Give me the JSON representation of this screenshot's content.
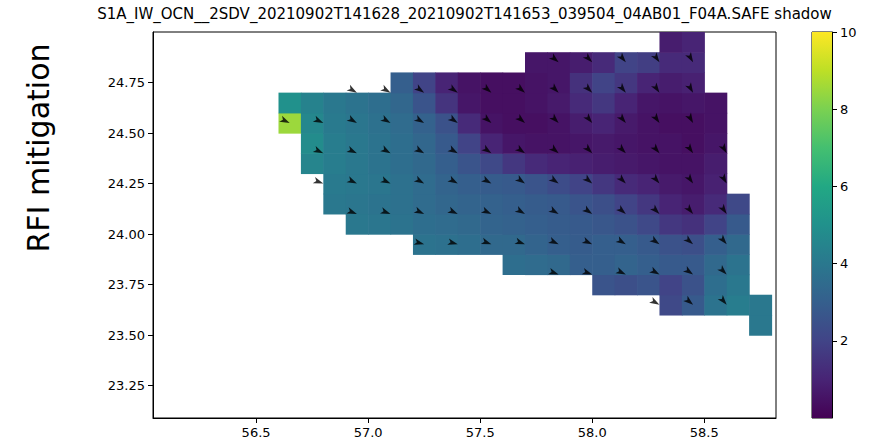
{
  "chart_data": {
    "type": "heatmap",
    "title": "S1A_IW_OCN__2SDV_20210902T141628_20210902T141653_039504_04AB01_F04A.SAFE shadow",
    "panel_label": "RFI mitigation",
    "grid": false,
    "color": "viridis",
    "xlim": [
      56.04,
      58.82
    ],
    "xticks": [
      56.5,
      {
        "value": 57,
        "label": "57.0"
      },
      57.5,
      {
        "value": 58,
        "label": "58.0"
      },
      58.5
    ],
    "ylim": [
      23.09,
      25.0
    ],
    "yticks": [
      23.25,
      {
        "value": 23.5,
        "label": "23.50"
      },
      23.75,
      {
        "value": 24,
        "label": "24.00"
      },
      24.25,
      {
        "value": 24.5,
        "label": "24.50"
      },
      24.75
    ],
    "colorbar": {
      "range": [
        0,
        10
      ],
      "ticks": [
        2,
        4,
        6,
        8,
        10
      ]
    },
    "cells": {
      "x": [
        56.65,
        56.75,
        56.85,
        56.95,
        57.05,
        57.15,
        57.25,
        57.35,
        57.45,
        57.55,
        57.65,
        57.75,
        57.85,
        57.95,
        58.05,
        58.15,
        58.25,
        58.35,
        58.45,
        58.55,
        58.65,
        58.75
      ],
      "y": [
        23.55,
        23.65,
        23.75,
        23.85,
        23.95,
        24.05,
        24.15,
        24.25,
        24.35,
        24.45,
        24.55,
        24.65,
        24.75,
        24.85,
        24.95
      ],
      "values": [
        [
          null,
          null,
          null,
          null,
          null,
          null,
          null,
          null,
          null,
          null,
          null,
          null,
          null,
          null,
          null,
          null,
          null,
          null,
          null,
          null,
          null,
          4.0
        ],
        [
          null,
          null,
          null,
          null,
          null,
          null,
          null,
          null,
          null,
          null,
          null,
          null,
          null,
          null,
          null,
          null,
          null,
          2.2,
          2.8,
          3.8,
          4.2,
          4.0
        ],
        [
          null,
          null,
          null,
          null,
          null,
          null,
          null,
          null,
          null,
          null,
          null,
          null,
          null,
          null,
          2.6,
          2.4,
          2.6,
          2.0,
          2.5,
          3.6,
          4.0,
          null
        ],
        [
          null,
          null,
          null,
          null,
          null,
          null,
          null,
          null,
          null,
          null,
          3.6,
          3.5,
          3.4,
          3.0,
          3.0,
          3.2,
          3.0,
          2.8,
          2.8,
          3.4,
          3.8,
          null
        ],
        [
          null,
          null,
          null,
          null,
          null,
          null,
          3.8,
          3.7,
          3.6,
          3.4,
          3.4,
          3.2,
          3.0,
          2.9,
          3.0,
          3.0,
          2.8,
          2.5,
          2.4,
          3.0,
          3.4,
          null
        ],
        [
          null,
          null,
          null,
          4.0,
          3.9,
          3.8,
          3.6,
          3.5,
          3.4,
          3.2,
          3.1,
          3.0,
          2.9,
          2.8,
          2.7,
          2.5,
          2.2,
          1.6,
          1.4,
          2.0,
          2.8,
          null
        ],
        [
          null,
          null,
          4.0,
          3.9,
          3.8,
          3.7,
          3.5,
          3.3,
          3.2,
          3.1,
          3.0,
          2.9,
          2.8,
          2.6,
          2.4,
          2.0,
          1.6,
          1.0,
          0.8,
          1.2,
          2.2,
          null
        ],
        [
          null,
          null,
          4.1,
          4.0,
          3.9,
          3.7,
          3.5,
          3.2,
          3.0,
          2.9,
          2.8,
          2.6,
          2.3,
          2.0,
          1.6,
          1.2,
          1.0,
          0.7,
          0.6,
          0.9,
          null,
          null
        ],
        [
          null,
          4.5,
          4.2,
          4.0,
          3.8,
          3.6,
          3.4,
          3.0,
          2.6,
          2.2,
          1.6,
          1.2,
          1.0,
          0.9,
          0.8,
          0.7,
          0.6,
          0.5,
          0.5,
          0.8,
          null,
          null
        ],
        [
          null,
          4.8,
          4.2,
          4.0,
          3.8,
          3.6,
          3.3,
          2.8,
          2.0,
          1.0,
          0.6,
          0.5,
          0.5,
          0.6,
          0.7,
          0.6,
          0.5,
          0.5,
          0.4,
          0.6,
          null,
          null
        ],
        [
          8.5,
          4.6,
          4.1,
          3.9,
          3.7,
          3.5,
          3.1,
          2.5,
          1.2,
          0.5,
          0.4,
          0.4,
          0.5,
          0.8,
          1.0,
          0.7,
          0.5,
          0.4,
          0.4,
          0.5,
          null,
          null
        ],
        [
          5.0,
          4.4,
          4.0,
          3.8,
          3.6,
          3.3,
          2.6,
          1.5,
          0.6,
          0.4,
          0.4,
          0.5,
          0.7,
          1.2,
          1.6,
          1.0,
          0.6,
          0.5,
          0.6,
          0.5,
          null,
          null
        ],
        [
          null,
          null,
          null,
          null,
          null,
          3.0,
          2.0,
          1.0,
          0.5,
          0.4,
          0.4,
          0.5,
          0.6,
          1.4,
          2.0,
          1.6,
          1.0,
          0.8,
          0.9,
          null,
          null,
          null
        ],
        [
          null,
          null,
          null,
          null,
          null,
          null,
          null,
          null,
          null,
          null,
          null,
          0.6,
          0.6,
          0.8,
          1.2,
          2.0,
          1.8,
          1.2,
          1.2,
          null,
          null,
          null
        ],
        [
          null,
          null,
          null,
          null,
          null,
          null,
          null,
          null,
          null,
          null,
          null,
          null,
          null,
          null,
          null,
          null,
          null,
          0.8,
          1.0,
          null,
          null,
          null
        ]
      ]
    },
    "quiver": {
      "marker": "arrow",
      "points": [
        [
          57.85,
          24.85,
          -40
        ],
        [
          58.0,
          24.85,
          -45
        ],
        [
          58.15,
          24.85,
          -50
        ],
        [
          58.3,
          24.85,
          -55
        ],
        [
          58.45,
          24.85,
          -60
        ],
        [
          56.95,
          24.7,
          -30
        ],
        [
          57.1,
          24.7,
          -30
        ],
        [
          57.25,
          24.7,
          -35
        ],
        [
          57.4,
          24.7,
          -35
        ],
        [
          57.55,
          24.7,
          -40
        ],
        [
          57.7,
          24.7,
          -40
        ],
        [
          57.85,
          24.7,
          -45
        ],
        [
          58.0,
          24.7,
          -45
        ],
        [
          58.15,
          24.7,
          -50
        ],
        [
          58.3,
          24.7,
          -55
        ],
        [
          58.45,
          24.7,
          -60
        ],
        [
          56.65,
          24.55,
          -25
        ],
        [
          56.8,
          24.55,
          -25
        ],
        [
          56.95,
          24.55,
          -30
        ],
        [
          57.1,
          24.55,
          -30
        ],
        [
          57.25,
          24.55,
          -30
        ],
        [
          57.4,
          24.55,
          -35
        ],
        [
          57.55,
          24.55,
          -40
        ],
        [
          57.7,
          24.55,
          -40
        ],
        [
          57.85,
          24.55,
          -45
        ],
        [
          58.0,
          24.55,
          -50
        ],
        [
          58.15,
          24.55,
          -50
        ],
        [
          58.3,
          24.55,
          -55
        ],
        [
          58.45,
          24.55,
          -60
        ],
        [
          56.8,
          24.4,
          -25
        ],
        [
          56.95,
          24.4,
          -25
        ],
        [
          57.1,
          24.4,
          -30
        ],
        [
          57.25,
          24.4,
          -30
        ],
        [
          57.4,
          24.4,
          -30
        ],
        [
          57.55,
          24.4,
          -35
        ],
        [
          57.7,
          24.4,
          -35
        ],
        [
          57.85,
          24.4,
          -40
        ],
        [
          58.0,
          24.4,
          -45
        ],
        [
          58.15,
          24.4,
          -45
        ],
        [
          58.3,
          24.4,
          -50
        ],
        [
          58.45,
          24.4,
          -55
        ],
        [
          58.6,
          24.4,
          -60
        ],
        [
          56.8,
          24.25,
          -20
        ],
        [
          56.95,
          24.25,
          -25
        ],
        [
          57.1,
          24.25,
          -25
        ],
        [
          57.25,
          24.25,
          -30
        ],
        [
          57.4,
          24.25,
          -30
        ],
        [
          57.55,
          24.25,
          -30
        ],
        [
          57.7,
          24.25,
          -35
        ],
        [
          57.85,
          24.25,
          -35
        ],
        [
          58.0,
          24.25,
          -40
        ],
        [
          58.15,
          24.25,
          -45
        ],
        [
          58.3,
          24.25,
          -50
        ],
        [
          58.45,
          24.25,
          -55
        ],
        [
          58.6,
          24.25,
          -60
        ],
        [
          56.95,
          24.1,
          -20
        ],
        [
          57.1,
          24.1,
          -20
        ],
        [
          57.25,
          24.1,
          -25
        ],
        [
          57.4,
          24.1,
          -25
        ],
        [
          57.55,
          24.1,
          -25
        ],
        [
          57.7,
          24.1,
          -30
        ],
        [
          57.85,
          24.1,
          -30
        ],
        [
          58.0,
          24.1,
          -35
        ],
        [
          58.15,
          24.1,
          -40
        ],
        [
          58.3,
          24.1,
          -45
        ],
        [
          58.45,
          24.1,
          -50
        ],
        [
          58.6,
          24.1,
          -55
        ],
        [
          57.25,
          23.95,
          -15
        ],
        [
          57.4,
          23.95,
          -15
        ],
        [
          57.55,
          23.95,
          -20
        ],
        [
          57.7,
          23.95,
          -20
        ],
        [
          57.85,
          23.95,
          -25
        ],
        [
          58.0,
          23.95,
          -25
        ],
        [
          58.15,
          23.95,
          -30
        ],
        [
          58.3,
          23.95,
          -35
        ],
        [
          58.45,
          23.95,
          -40
        ],
        [
          58.6,
          23.95,
          -50
        ],
        [
          57.85,
          23.8,
          -20
        ],
        [
          58.0,
          23.8,
          -20
        ],
        [
          58.15,
          23.8,
          -25
        ],
        [
          58.3,
          23.8,
          -30
        ],
        [
          58.45,
          23.8,
          -35
        ],
        [
          58.6,
          23.8,
          -45
        ],
        [
          58.3,
          23.65,
          -30
        ],
        [
          58.45,
          23.65,
          -40
        ],
        [
          58.6,
          23.65,
          -50
        ]
      ]
    }
  }
}
